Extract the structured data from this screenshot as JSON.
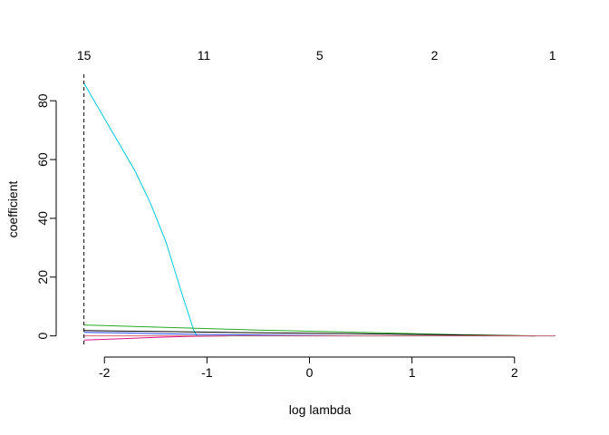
{
  "chart_data": {
    "type": "line",
    "xlabel": "log lambda",
    "ylabel": "coefficient",
    "xlim": [
      -2.4,
      2.4
    ],
    "ylim": [
      -3.5,
      89
    ],
    "x_ticks": [
      -2,
      -1,
      0,
      1,
      2
    ],
    "y_ticks": [
      0,
      20,
      40,
      60,
      80
    ],
    "top_axis": {
      "positions": [
        -2.2,
        -1.03,
        0.1,
        1.22,
        2.37
      ],
      "labels": [
        "15",
        "11",
        "5",
        "2",
        "1"
      ]
    },
    "vline": {
      "x": -2.2,
      "style": "dashed"
    },
    "series": [
      {
        "color": "#00c8dc",
        "x": [
          -2.2,
          -1.95,
          -1.7,
          -1.55,
          -1.4,
          -1.25,
          -1.13,
          -1.1,
          2.4
        ],
        "y": [
          86,
          71,
          56,
          45,
          32,
          15,
          2,
          0,
          0
        ]
      },
      {
        "color": "#22aa22",
        "x": [
          -2.2,
          -1.6,
          -1.1,
          -0.5,
          0,
          0.5,
          1.0,
          1.5,
          2.2
        ],
        "y": [
          3.7,
          3.1,
          2.6,
          2.0,
          1.6,
          1.2,
          0.8,
          0.4,
          0
        ]
      },
      {
        "color": "#000000",
        "x": [
          -2.2,
          -1.5,
          -0.8,
          0,
          0.8,
          1.5,
          2.2
        ],
        "y": [
          1.8,
          1.5,
          1.2,
          0.9,
          0.6,
          0.3,
          0
        ]
      },
      {
        "color": "#2244ee",
        "x": [
          -2.2,
          -1.8,
          -1.5,
          -1.1,
          0.4
        ],
        "y": [
          1.2,
          1.0,
          0.8,
          0.5,
          0
        ]
      },
      {
        "color": "#dd1188",
        "x": [
          -2.2,
          -1.8,
          -1.5,
          -1.2,
          -0.8
        ],
        "y": [
          -1.4,
          -0.9,
          -0.5,
          -0.2,
          0
        ]
      },
      {
        "color": "#e06070",
        "x": [
          -2.2,
          2.4
        ],
        "y": [
          0,
          0
        ]
      }
    ]
  }
}
